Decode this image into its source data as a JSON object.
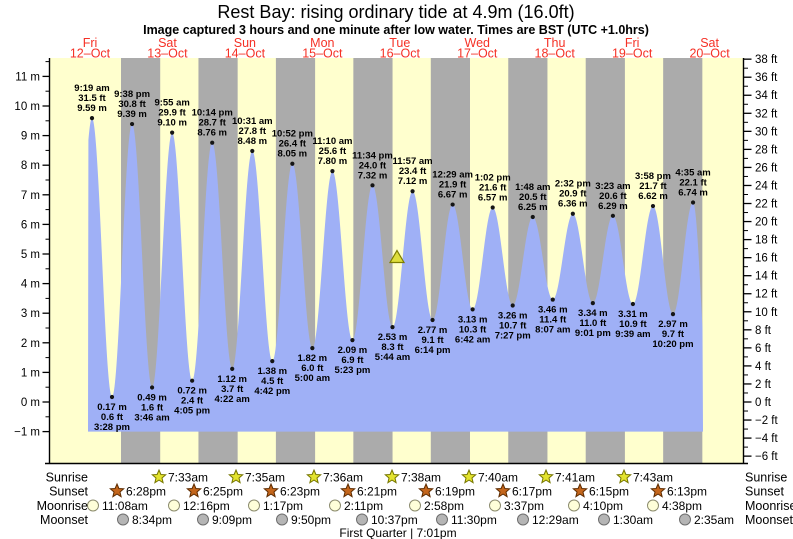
{
  "title": "Rest Bay: rising  ordinary tide at 4.9m (16.0ft)",
  "subtitle": "Image captured 3 hours and one minute after low water. Times are BST (UTC +1.0hrs)",
  "colors": {
    "day_band": "#ffffce",
    "night_band": "#ababab",
    "tide_fill": "#9fb0f6",
    "label_red": "#f53126",
    "dot": "#151515",
    "marker_fill": "#dede3c",
    "marker_stroke": "#7d7d00",
    "sunrise_fill": "#e3e32e",
    "sunrise_stroke": "#767600",
    "sunset_fill": "#c4661c",
    "sunset_stroke": "#5e2c00",
    "moonrise_fill": "#ffffd9",
    "moonrise_stroke": "#8c8c6e",
    "moonset_fill": "#b5b5b5",
    "moonset_stroke": "#6e6e6e"
  },
  "days": [
    {
      "name": "Fri",
      "date": "12–Oct"
    },
    {
      "name": "Sat",
      "date": "13–Oct"
    },
    {
      "name": "Sun",
      "date": "14–Oct"
    },
    {
      "name": "Mon",
      "date": "15–Oct"
    },
    {
      "name": "Tue",
      "date": "16–Oct"
    },
    {
      "name": "Wed",
      "date": "17–Oct"
    },
    {
      "name": "Thu",
      "date": "18–Oct"
    },
    {
      "name": "Fri",
      "date": "19–Oct"
    },
    {
      "name": "Sat",
      "date": "20–Oct"
    }
  ],
  "chart_data": {
    "type": "area",
    "y_axis_left": {
      "unit": "m",
      "ticks": [
        11,
        10,
        9,
        8,
        7,
        6,
        5,
        4,
        3,
        2,
        1,
        0,
        -1
      ]
    },
    "y_axis_right": {
      "unit": "ft",
      "ticks": [
        38,
        36,
        34,
        32,
        30,
        28,
        26,
        24,
        22,
        20,
        18,
        16,
        14,
        12,
        10,
        8,
        6,
        4,
        2,
        0,
        -2,
        -4,
        -6
      ]
    },
    "current_marker": {
      "state": "rising",
      "height_m": 4.9,
      "height_ft": 16.0
    },
    "high_tides": [
      {
        "time": "9:19 am",
        "ft": "31.5",
        "m": "9.59"
      },
      {
        "time": "9:38 pm",
        "ft": "30.8",
        "m": "9.39"
      },
      {
        "time": "9:55 am",
        "ft": "29.9",
        "m": "9.10"
      },
      {
        "time": "10:14 pm",
        "ft": "28.7",
        "m": "8.76"
      },
      {
        "time": "10:31 am",
        "ft": "27.8",
        "m": "8.48"
      },
      {
        "time": "10:52 pm",
        "ft": "26.4",
        "m": "8.05"
      },
      {
        "time": "11:10 am",
        "ft": "25.6",
        "m": "7.80"
      },
      {
        "time": "11:34 pm",
        "ft": "24.0",
        "m": "7.32"
      },
      {
        "time": "11:57 am",
        "ft": "23.4",
        "m": "7.12"
      },
      {
        "time": "12:29 am",
        "ft": "21.9",
        "m": "6.67"
      },
      {
        "time": "1:02 pm",
        "ft": "21.6",
        "m": "6.57"
      },
      {
        "time": "1:48 am",
        "ft": "20.5",
        "m": "6.25"
      },
      {
        "time": "2:32 pm",
        "ft": "20.9",
        "m": "6.36"
      },
      {
        "time": "3:23 am",
        "ft": "20.6",
        "m": "6.29"
      },
      {
        "time": "3:58 pm",
        "ft": "21.7",
        "m": "6.62"
      },
      {
        "time": "4:35 am",
        "ft": "22.1",
        "m": "6.74"
      }
    ],
    "low_tides": [
      {
        "m": "0.17",
        "ft": "0.6",
        "time": "3:28 pm"
      },
      {
        "m": "0.49",
        "ft": "1.6",
        "time": "3:46 am"
      },
      {
        "m": "0.72",
        "ft": "2.4",
        "time": "4:05 pm"
      },
      {
        "m": "1.12",
        "ft": "3.7",
        "time": "4:22 am"
      },
      {
        "m": "1.38",
        "ft": "4.5",
        "time": "4:42 pm"
      },
      {
        "m": "1.82",
        "ft": "6.0",
        "time": "5:00 am"
      },
      {
        "m": "2.09",
        "ft": "6.9",
        "time": "5:23 pm"
      },
      {
        "m": "2.53",
        "ft": "8.3",
        "time": "5:44 am"
      },
      {
        "m": "2.77",
        "ft": "9.1",
        "time": "6:14 pm"
      },
      {
        "m": "3.13",
        "ft": "10.3",
        "time": "6:42 am"
      },
      {
        "m": "3.26",
        "ft": "10.7",
        "time": "7:27 pm"
      },
      {
        "m": "3.46",
        "ft": "11.4",
        "time": "8:07 am"
      },
      {
        "m": "3.34",
        "ft": "11.0",
        "time": "9:01 pm"
      },
      {
        "m": "3.31",
        "ft": "10.9",
        "time": "9:39 am"
      },
      {
        "m": "2.97",
        "ft": "9.7",
        "time": "10:20 pm"
      }
    ]
  },
  "astro": {
    "sunrise": {
      "label": "Sunrise",
      "times": [
        "7:33am",
        "7:35am",
        "7:36am",
        "7:38am",
        "7:40am",
        "7:41am",
        "7:43am"
      ]
    },
    "sunset": {
      "label": "Sunset",
      "times": [
        "6:28pm",
        "6:25pm",
        "6:23pm",
        "6:21pm",
        "6:19pm",
        "6:17pm",
        "6:15pm",
        "6:13pm"
      ]
    },
    "moonrise": {
      "label": "Moonrise",
      "times": [
        "11:08am",
        "12:16pm",
        "1:17pm",
        "2:11pm",
        "2:58pm",
        "3:37pm",
        "4:10pm",
        "4:38pm"
      ]
    },
    "moonset": {
      "label": "Moonset",
      "times": [
        "8:34pm",
        "9:09pm",
        "9:50pm",
        "10:37pm",
        "11:30pm",
        "12:29am",
        "1:30am",
        "2:35am"
      ]
    },
    "moon_phase": "First Quarter | 7:01pm"
  }
}
